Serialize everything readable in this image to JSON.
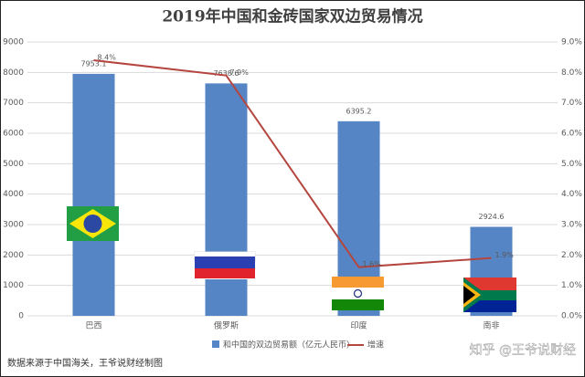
{
  "chart_data": {
    "type": "bar-line",
    "title": "2019年中国和金砖国家双边贸易情况",
    "categories": [
      "巴西",
      "俄罗斯",
      "印度",
      "南非"
    ],
    "series": [
      {
        "name": "和中国的双边贸易额（亿元人民币）",
        "type": "bar",
        "color": "#5585c4",
        "values": [
          7953.1,
          7638.6,
          6395.2,
          2924.6
        ]
      },
      {
        "name": "增速",
        "type": "line",
        "axis": "y2",
        "color": "#b5463f",
        "values": [
          8.4,
          7.9,
          1.6,
          1.9
        ],
        "value_labels": [
          "8.4%",
          "7.9%",
          "1.6%",
          "1.9%"
        ]
      }
    ],
    "ylim": [
      0,
      9000
    ],
    "yticks": [
      0,
      1000,
      2000,
      3000,
      4000,
      5000,
      6000,
      7000,
      8000,
      9000
    ],
    "y2lim": [
      0,
      9
    ],
    "y2ticks": [
      {
        "value": 0,
        "label": "0.0%"
      },
      {
        "value": 1,
        "label": "1.0%"
      },
      {
        "value": 2,
        "label": "2.0%"
      },
      {
        "value": 3,
        "label": "3.0%"
      },
      {
        "value": 4,
        "label": "4.0%"
      },
      {
        "value": 5,
        "label": "5.0%"
      },
      {
        "value": 6,
        "label": "6.0%"
      },
      {
        "value": 7,
        "label": "7.0%"
      },
      {
        "value": 8,
        "label": "8.0%"
      },
      {
        "value": 9,
        "label": "9.0%"
      }
    ],
    "grid": true,
    "source": "数据来源于中国海关，王爷说财经制图",
    "watermark": "知乎 @王爷说财经"
  }
}
